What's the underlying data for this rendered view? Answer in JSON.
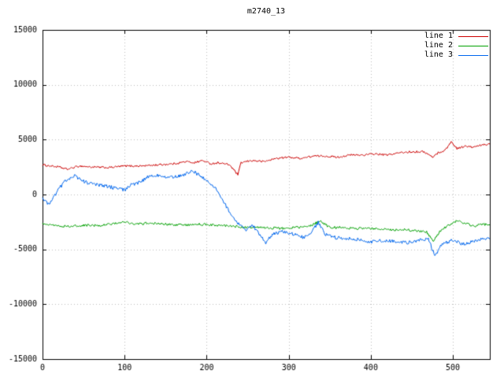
{
  "title": "m2740_13",
  "chart_data": {
    "type": "line",
    "title": "m2740_13",
    "xlabel": "",
    "ylabel": "",
    "xlim": [
      0,
      545
    ],
    "ylim": [
      -15000,
      15000
    ],
    "xticks": [
      0,
      100,
      200,
      300,
      400,
      500
    ],
    "yticks": [
      -15000,
      -10000,
      -5000,
      0,
      5000,
      10000,
      15000
    ],
    "grid": true,
    "grid_style": "dotted",
    "legend_position": "top-right",
    "background": "#ffffff",
    "border_color": "#000000",
    "grid_color": "#bebebe",
    "series": [
      {
        "name": "line 1",
        "color": "#cc0000",
        "noise": 90,
        "keypoints": [
          [
            0,
            2700
          ],
          [
            20,
            2500
          ],
          [
            30,
            2300
          ],
          [
            45,
            2600
          ],
          [
            60,
            2500
          ],
          [
            80,
            2450
          ],
          [
            100,
            2600
          ],
          [
            120,
            2600
          ],
          [
            140,
            2700
          ],
          [
            160,
            2800
          ],
          [
            175,
            3000
          ],
          [
            185,
            2900
          ],
          [
            195,
            3100
          ],
          [
            205,
            2800
          ],
          [
            215,
            2900
          ],
          [
            228,
            2700
          ],
          [
            238,
            1800
          ],
          [
            242,
            2900
          ],
          [
            255,
            3100
          ],
          [
            270,
            3000
          ],
          [
            285,
            3300
          ],
          [
            300,
            3400
          ],
          [
            315,
            3300
          ],
          [
            330,
            3500
          ],
          [
            345,
            3500
          ],
          [
            360,
            3400
          ],
          [
            375,
            3600
          ],
          [
            390,
            3600
          ],
          [
            405,
            3700
          ],
          [
            420,
            3600
          ],
          [
            435,
            3800
          ],
          [
            450,
            3900
          ],
          [
            465,
            3900
          ],
          [
            475,
            3400
          ],
          [
            482,
            3800
          ],
          [
            490,
            4000
          ],
          [
            498,
            4800
          ],
          [
            505,
            4200
          ],
          [
            515,
            4400
          ],
          [
            525,
            4300
          ],
          [
            535,
            4500
          ],
          [
            545,
            4600
          ]
        ]
      },
      {
        "name": "line 2",
        "color": "#00a000",
        "noise": 110,
        "keypoints": [
          [
            0,
            -2600
          ],
          [
            15,
            -2800
          ],
          [
            30,
            -2900
          ],
          [
            50,
            -2800
          ],
          [
            70,
            -2850
          ],
          [
            90,
            -2600
          ],
          [
            100,
            -2500
          ],
          [
            115,
            -2700
          ],
          [
            130,
            -2600
          ],
          [
            150,
            -2700
          ],
          [
            170,
            -2800
          ],
          [
            190,
            -2700
          ],
          [
            210,
            -2800
          ],
          [
            230,
            -2900
          ],
          [
            250,
            -3000
          ],
          [
            270,
            -3000
          ],
          [
            290,
            -3100
          ],
          [
            310,
            -3000
          ],
          [
            325,
            -2900
          ],
          [
            338,
            -2400
          ],
          [
            350,
            -3000
          ],
          [
            365,
            -3000
          ],
          [
            380,
            -3100
          ],
          [
            400,
            -3100
          ],
          [
            420,
            -3200
          ],
          [
            440,
            -3200
          ],
          [
            455,
            -3300
          ],
          [
            468,
            -3400
          ],
          [
            476,
            -4300
          ],
          [
            484,
            -3400
          ],
          [
            492,
            -2900
          ],
          [
            505,
            -2400
          ],
          [
            515,
            -2600
          ],
          [
            525,
            -2900
          ],
          [
            535,
            -2700
          ],
          [
            545,
            -2800
          ]
        ]
      },
      {
        "name": "line 3",
        "color": "#0066ee",
        "noise": 160,
        "keypoints": [
          [
            0,
            -400
          ],
          [
            8,
            -900
          ],
          [
            18,
            300
          ],
          [
            28,
            1300
          ],
          [
            40,
            1700
          ],
          [
            50,
            1200
          ],
          [
            62,
            900
          ],
          [
            75,
            800
          ],
          [
            88,
            600
          ],
          [
            100,
            400
          ],
          [
            108,
            900
          ],
          [
            118,
            1100
          ],
          [
            128,
            1600
          ],
          [
            140,
            1800
          ],
          [
            150,
            1500
          ],
          [
            160,
            1600
          ],
          [
            172,
            1800
          ],
          [
            182,
            2200
          ],
          [
            190,
            1800
          ],
          [
            200,
            1300
          ],
          [
            210,
            700
          ],
          [
            220,
            -600
          ],
          [
            230,
            -1800
          ],
          [
            240,
            -2800
          ],
          [
            248,
            -3300
          ],
          [
            256,
            -2800
          ],
          [
            264,
            -3600
          ],
          [
            272,
            -4400
          ],
          [
            280,
            -3600
          ],
          [
            292,
            -3400
          ],
          [
            305,
            -3600
          ],
          [
            318,
            -3900
          ],
          [
            328,
            -3400
          ],
          [
            336,
            -2500
          ],
          [
            344,
            -3600
          ],
          [
            355,
            -3900
          ],
          [
            370,
            -4000
          ],
          [
            385,
            -4100
          ],
          [
            400,
            -4300
          ],
          [
            415,
            -4200
          ],
          [
            430,
            -4300
          ],
          [
            445,
            -4400
          ],
          [
            458,
            -4200
          ],
          [
            470,
            -4000
          ],
          [
            478,
            -5600
          ],
          [
            488,
            -4400
          ],
          [
            500,
            -4200
          ],
          [
            512,
            -4500
          ],
          [
            525,
            -4300
          ],
          [
            535,
            -4100
          ],
          [
            545,
            -4000
          ]
        ]
      }
    ]
  }
}
